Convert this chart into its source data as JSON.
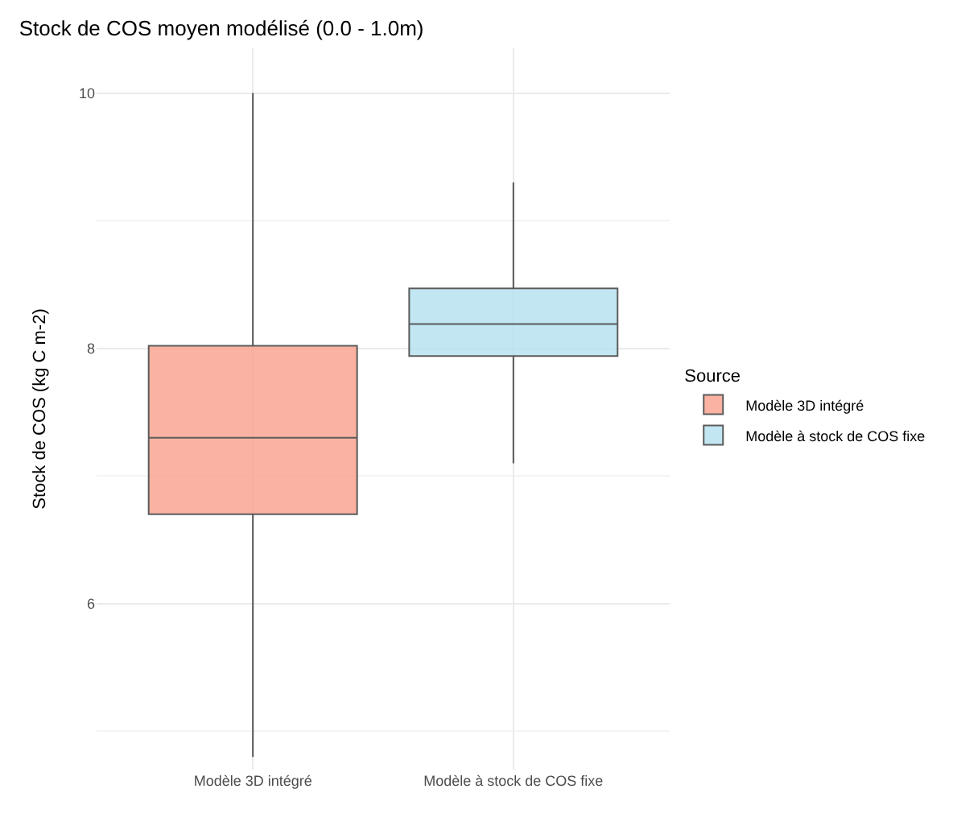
{
  "chart_data": {
    "type": "box",
    "title": "Stock de COS moyen modélisé (0.0 - 1.0m)",
    "ylabel": "Stock de COS (kg C m-2)",
    "legend_title": "Source",
    "categories": [
      "Modèle 3D intégré",
      "Modèle à stock de COS fixe"
    ],
    "series": [
      {
        "name": "Modèle 3D intégré",
        "color": "#f9a08c",
        "boxes": [
          {
            "low": 4.8,
            "q1": 6.7,
            "median": 7.3,
            "q3": 8.02,
            "high": 10.0
          },
          null
        ]
      },
      {
        "name": "Modèle à stock de COS fixe",
        "color": "#b4e0f0",
        "boxes": [
          null,
          {
            "low": 7.1,
            "q1": 7.94,
            "median": 8.19,
            "q3": 8.47,
            "high": 9.3
          }
        ]
      }
    ],
    "ylim": [
      4.7,
      10.35
    ],
    "yticks": [
      6,
      8,
      10
    ],
    "grid": true,
    "legend": "right"
  }
}
